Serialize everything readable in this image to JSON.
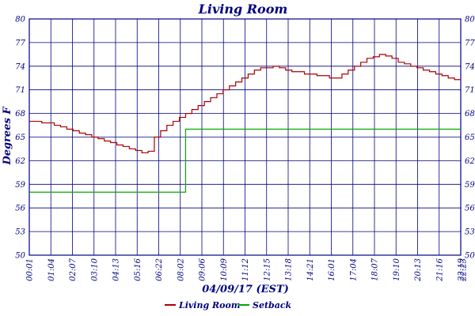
{
  "chart_data": {
    "type": "line",
    "title": "Living Room",
    "xlabel": "04/09/17 (EST)",
    "ylabel": "Degrees F",
    "ylim": [
      50,
      80
    ],
    "y_ticks": [
      "50",
      "53",
      "56",
      "59",
      "62",
      "65",
      "68",
      "71",
      "74",
      "77",
      "80"
    ],
    "x_ticks": [
      "00:01",
      "01:04",
      "02:07",
      "03:10",
      "04:13",
      "05:16",
      "06:22",
      "08:02",
      "09:06",
      "10:09",
      "11:12",
      "12:15",
      "13:18",
      "14:21",
      "16:01",
      "17:04",
      "18:07",
      "19:10",
      "20:13",
      "21:16",
      "22:19",
      "22:23"
    ],
    "grid": true,
    "legend_position": "bottom",
    "colors": {
      "axis": "#000080",
      "grid": "#000080"
    },
    "series": [
      {
        "name": "Living Room",
        "color": "#aa0000",
        "values": [
          67.0,
          67.0,
          66.8,
          66.8,
          66.5,
          66.3,
          66.0,
          65.8,
          65.5,
          65.3,
          65.0,
          64.8,
          64.5,
          64.3,
          64.0,
          63.8,
          63.5,
          63.3,
          63.0,
          63.2,
          65.0,
          65.8,
          66.5,
          67.0,
          67.5,
          68.0,
          68.5,
          69.0,
          69.5,
          70.0,
          70.5,
          71.0,
          71.5,
          72.0,
          72.5,
          73.0,
          73.5,
          73.8,
          73.8,
          74.0,
          73.8,
          73.5,
          73.3,
          73.3,
          73.0,
          73.0,
          72.8,
          72.8,
          72.5,
          72.5,
          73.0,
          73.5,
          74.0,
          74.5,
          75.0,
          75.2,
          75.5,
          75.3,
          75.0,
          74.5,
          74.3,
          74.0,
          73.8,
          73.5,
          73.3,
          73.0,
          72.8,
          72.5,
          72.3,
          72.3
        ]
      },
      {
        "name": "Setback",
        "color": "#00aa00",
        "values": [
          58,
          58,
          58,
          58,
          58,
          58,
          58,
          58,
          58,
          58,
          58,
          58,
          58,
          58,
          58,
          58,
          58,
          58,
          58,
          58,
          58,
          58,
          58,
          58,
          58,
          66,
          66,
          66,
          66,
          66,
          66,
          66,
          66,
          66,
          66,
          66,
          66,
          66,
          66,
          66,
          66,
          66,
          66,
          66,
          66,
          66,
          66,
          66,
          66,
          66,
          66,
          66,
          66,
          66,
          66,
          66,
          66,
          66,
          66,
          66,
          66,
          66,
          66,
          66,
          66,
          66,
          66,
          66,
          66,
          66
        ]
      }
    ]
  }
}
